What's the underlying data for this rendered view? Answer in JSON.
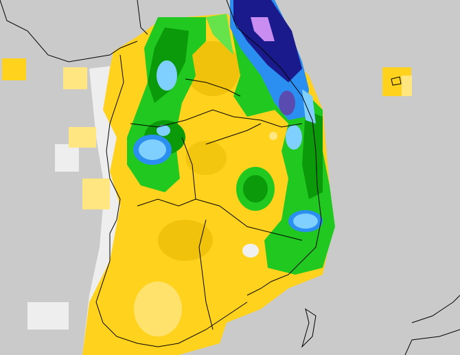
{
  "map": {
    "background_color": "#cacaca",
    "land_outline_color": "#000000",
    "palette": {
      "very_light": "#f0f0f0",
      "pale_yellow": "#ffe680",
      "yellow": "#ffd21e",
      "gold": "#e6b800",
      "olive": "#c8b400",
      "light_green": "#66e24a",
      "green": "#20c820",
      "dark_green": "#0a9a0a",
      "light_blue": "#7fd0ff",
      "blue": "#2a8ff0",
      "navy": "#1a1a8c",
      "purple": "#c98cf0"
    }
  }
}
